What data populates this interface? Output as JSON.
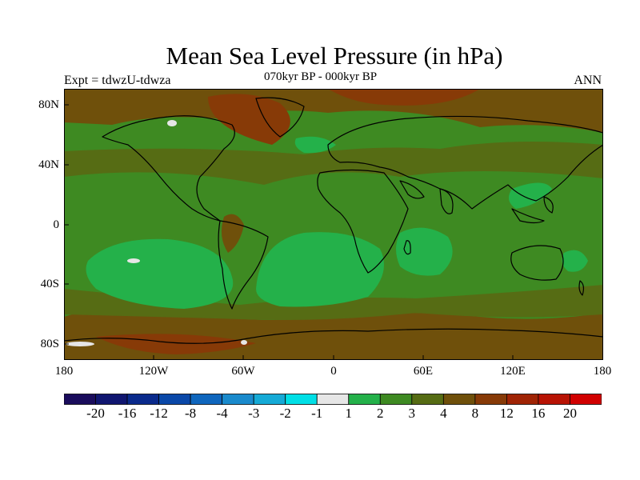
{
  "title": "Mean Sea Level Pressure (in hPa)",
  "subtitle": "070kyr BP - 000kyr BP",
  "experiment": "Expt = tdwzU-tdwza",
  "season": "ANN",
  "y_ticks": [
    "80N",
    "40N",
    "0",
    "40S",
    "80S"
  ],
  "x_ticks": [
    "180",
    "120W",
    "60W",
    "0",
    "60E",
    "120E",
    "180"
  ],
  "colorbar": {
    "labels": [
      "-20",
      "-16",
      "-12",
      "-8",
      "-4",
      "-3",
      "-2",
      "-1",
      "1",
      "2",
      "3",
      "4",
      "8",
      "12",
      "16",
      "20"
    ],
    "colors": [
      "#1a0c5c",
      "#101670",
      "#0a2a8c",
      "#0a48a8",
      "#0f66bd",
      "#1a8acc",
      "#15aad6",
      "#00dfe6",
      "#e6e6e6",
      "#24b14a",
      "#3e8a22",
      "#566c14",
      "#6f500b",
      "#873a07",
      "#a02405",
      "#b81304",
      "#d10000"
    ]
  },
  "map_colors": {
    "ocean_base": "#3e8a22",
    "band_1_2": "#24b14a",
    "band_3_4": "#566c14",
    "band_4_8": "#6f500b",
    "band_8_12": "#873a07",
    "band_neg": "#e6e6e6",
    "coast": "#000000"
  }
}
